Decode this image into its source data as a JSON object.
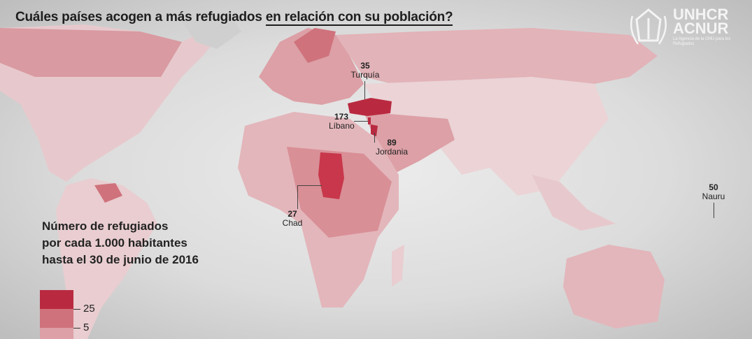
{
  "title": {
    "part1": "Cuáles países acogen a más refugiados ",
    "part2": "en relación con su población?"
  },
  "logo": {
    "line1": "UNHCR",
    "line2": "ACNUR",
    "tagline": "La Agencia de la ONU para los Refugiados"
  },
  "colors": {
    "high": "#b92a40",
    "mid": "#cf727c",
    "low": "#dca0a6",
    "base": "#e9cdd0"
  },
  "annotations": [
    {
      "value": "35",
      "country": "Turquía"
    },
    {
      "value": "173",
      "country": "Líbano"
    },
    {
      "value": "89",
      "country": "Jordania"
    },
    {
      "value": "27",
      "country": "Chad"
    },
    {
      "value": "50",
      "country": "Nauru"
    }
  ],
  "legend": {
    "title_lines": [
      "Número de refugiados",
      "por cada 1.000 habitantes",
      "hasta el 30 de junio de 2016"
    ],
    "thresholds": [
      "25",
      "5"
    ]
  }
}
